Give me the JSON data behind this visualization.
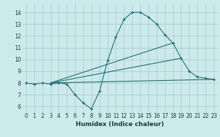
{
  "xlabel": "Humidex (Indice chaleur)",
  "bg_color": "#cce9ec",
  "grid_color": "#aacdd4",
  "line_color": "#1a6b6b",
  "xlim": [
    -0.5,
    23.5
  ],
  "ylim": [
    5.5,
    14.7
  ],
  "xticks": [
    0,
    1,
    2,
    3,
    4,
    5,
    6,
    7,
    8,
    9,
    10,
    11,
    12,
    13,
    14,
    15,
    16,
    17,
    18,
    19,
    20,
    21,
    22,
    23
  ],
  "yticks": [
    6,
    7,
    8,
    9,
    10,
    11,
    12,
    13,
    14
  ],
  "curve_x": [
    0,
    1,
    2,
    3,
    4,
    5,
    6,
    7,
    8,
    9,
    10,
    11,
    12,
    13,
    14,
    15,
    16,
    17,
    18,
    19,
    20,
    21,
    22,
    23
  ],
  "curve_y": [
    8.0,
    7.9,
    8.0,
    7.9,
    8.0,
    7.9,
    7.0,
    6.3,
    5.8,
    7.3,
    9.9,
    11.9,
    13.4,
    14.0,
    14.0,
    13.6,
    13.0,
    12.1,
    11.4,
    10.1,
    9.0,
    8.5,
    8.4,
    8.3
  ],
  "line1_x": [
    3,
    23
  ],
  "line1_y": [
    8.0,
    8.3
  ],
  "line2_x": [
    3,
    19
  ],
  "line2_y": [
    8.0,
    10.1
  ],
  "line3_x": [
    3,
    18
  ],
  "line3_y": [
    8.0,
    11.4
  ]
}
